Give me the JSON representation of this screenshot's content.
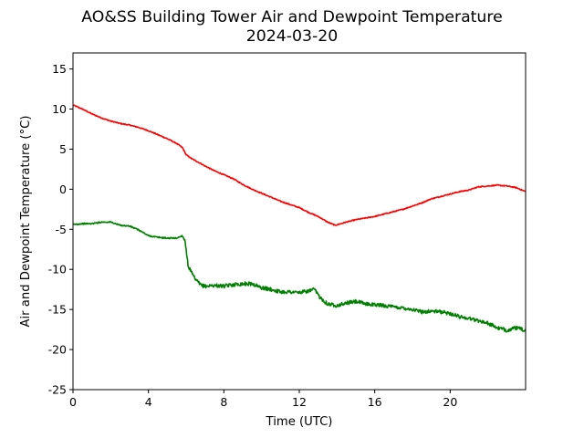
{
  "chart_data": {
    "type": "line",
    "title": "AO&SS Building Tower Air and Dewpoint Temperature",
    "subtitle": "2024-03-20",
    "xlabel": "Time (UTC)",
    "ylabel": "Air and Dewpoint Temperature (°C)",
    "xlim": [
      0,
      24
    ],
    "ylim": [
      -25,
      17
    ],
    "xticks": [
      0,
      4,
      8,
      12,
      16,
      20
    ],
    "yticks": [
      -25,
      -20,
      -15,
      -10,
      -5,
      0,
      5,
      10,
      15
    ],
    "grid": false,
    "legend": "none",
    "series": [
      {
        "color": "#ff0000",
        "x": [
          0,
          0.5,
          1,
          1.5,
          2,
          2.5,
          3,
          3.5,
          4,
          4.5,
          5,
          5.5,
          5.8,
          6,
          6.3,
          6.7,
          7,
          7.5,
          8,
          8.5,
          9,
          9.5,
          10,
          10.5,
          11,
          11.5,
          12,
          12.5,
          13,
          13.5,
          13.9,
          14.5,
          15,
          15.5,
          16,
          16.5,
          17,
          17.5,
          18,
          18.5,
          19,
          19.5,
          20,
          20.5,
          21,
          21.5,
          22,
          22.5,
          23,
          23.5,
          24
        ],
        "y": [
          10.5,
          10.0,
          9.4,
          8.9,
          8.5,
          8.2,
          8.0,
          7.7,
          7.3,
          6.8,
          6.3,
          5.7,
          5.2,
          4.3,
          3.8,
          3.3,
          2.9,
          2.3,
          1.8,
          1.3,
          0.6,
          0.0,
          -0.5,
          -1.0,
          -1.5,
          -1.9,
          -2.3,
          -2.9,
          -3.4,
          -4.1,
          -4.5,
          -4.1,
          -3.8,
          -3.6,
          -3.4,
          -3.1,
          -2.8,
          -2.5,
          -2.1,
          -1.7,
          -1.2,
          -0.9,
          -0.6,
          -0.3,
          -0.1,
          0.3,
          0.4,
          0.5,
          0.4,
          0.2,
          -0.3
        ]
      },
      {
        "color": "#008000",
        "x": [
          0,
          0.5,
          1,
          1.5,
          2,
          2.5,
          3,
          3.5,
          4,
          4.5,
          5,
          5.5,
          5.8,
          5.95,
          6.1,
          6.3,
          6.5,
          6.8,
          7,
          7.5,
          8,
          8.5,
          9,
          9.5,
          10,
          10.5,
          11,
          11.5,
          12,
          12.5,
          12.8,
          13.1,
          13.5,
          14,
          14.5,
          15,
          15.5,
          16,
          16.5,
          17,
          17.5,
          18,
          18.5,
          19,
          19.5,
          20,
          20.5,
          21,
          21.5,
          22,
          22.5,
          23,
          23.5,
          24
        ],
        "y": [
          -4.4,
          -4.3,
          -4.3,
          -4.1,
          -4.1,
          -4.5,
          -4.6,
          -5.1,
          -5.8,
          -6.0,
          -6.1,
          -6.1,
          -5.8,
          -6.5,
          -9.5,
          -10.5,
          -11.3,
          -12.0,
          -12.1,
          -12.0,
          -12.1,
          -11.9,
          -11.8,
          -11.8,
          -12.3,
          -12.5,
          -12.8,
          -12.8,
          -12.9,
          -12.7,
          -12.5,
          -13.5,
          -14.3,
          -14.5,
          -14.2,
          -14.0,
          -14.3,
          -14.4,
          -14.5,
          -14.7,
          -14.8,
          -15.0,
          -15.3,
          -15.2,
          -15.3,
          -15.5,
          -15.9,
          -16.1,
          -16.4,
          -16.7,
          -17.3,
          -17.6,
          -17.3,
          -17.6
        ]
      }
    ]
  }
}
